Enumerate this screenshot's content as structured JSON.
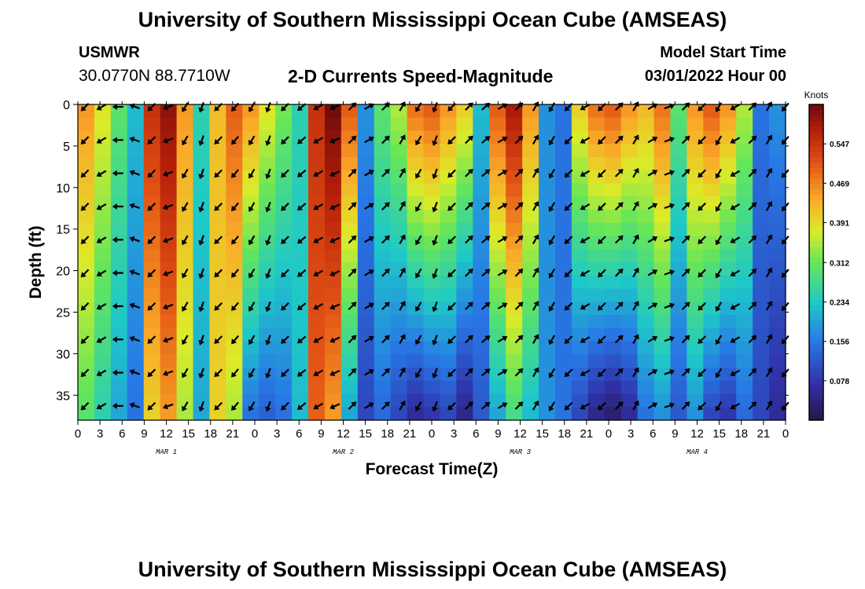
{
  "header": {
    "title": "University of Southern Mississippi Ocean Cube (AMSEAS)",
    "station": "USMWR",
    "coords": "30.0770N  88.7710W",
    "subtitle": "2-D Currents Speed-Magnitude",
    "start_label": "Model Start Time",
    "start_value": "03/01/2022 Hour 00"
  },
  "footer": {
    "title": "University of Southern Mississippi Ocean Cube (AMSEAS)"
  },
  "chart_data": {
    "type": "heatmap",
    "xlabel": "Forecast Time(Z)",
    "ylabel": "Depth (ft)",
    "x_range_hours": [
      0,
      96
    ],
    "y_range_ft": [
      0,
      38
    ],
    "x_tick_labels": [
      "0",
      "3",
      "6",
      "9",
      "12",
      "15",
      "18",
      "21",
      "0",
      "3",
      "6",
      "9",
      "12",
      "15",
      "18",
      "21",
      "0",
      "3",
      "6",
      "9",
      "12",
      "15",
      "18",
      "21",
      "0",
      "3",
      "6",
      "9",
      "12",
      "15",
      "18",
      "21",
      "0"
    ],
    "day_labels": [
      "MAR 1",
      "MAR 2",
      "MAR 3",
      "MAR 4"
    ],
    "y_ticks": [
      0,
      5,
      10,
      15,
      20,
      25,
      30,
      35
    ],
    "colorbar": {
      "unit": "Knots",
      "tick_values": [
        0.078,
        0.156,
        0.234,
        0.312,
        0.391,
        0.469,
        0.547
      ],
      "tick_labels": [
        "0.078",
        "0.156",
        "0.234",
        "0.312",
        "0.391",
        "0.469",
        "0.547"
      ],
      "range": [
        0.0,
        0.625
      ]
    },
    "speed_profile_surface_knots": [
      0.45,
      0.38,
      0.3,
      0.22,
      0.55,
      0.6,
      0.45,
      0.25,
      0.42,
      0.5,
      0.45,
      0.38,
      0.32,
      0.25,
      0.55,
      0.62,
      0.5,
      0.18,
      0.3,
      0.35,
      0.48,
      0.5,
      0.45,
      0.4,
      0.22,
      0.5,
      0.58,
      0.45,
      0.18,
      0.15,
      0.4,
      0.48,
      0.5,
      0.45,
      0.42,
      0.48,
      0.3,
      0.45,
      0.5,
      0.45,
      0.35,
      0.15,
      0.18
    ],
    "speed_profile_bottom_knots": [
      0.3,
      0.25,
      0.2,
      0.15,
      0.4,
      0.45,
      0.35,
      0.2,
      0.4,
      0.35,
      0.15,
      0.13,
      0.15,
      0.22,
      0.5,
      0.45,
      0.2,
      0.1,
      0.14,
      0.1,
      0.06,
      0.08,
      0.1,
      0.05,
      0.12,
      0.2,
      0.28,
      0.22,
      0.18,
      0.15,
      0.1,
      0.05,
      0.03,
      0.06,
      0.15,
      0.18,
      0.12,
      0.18,
      0.1,
      0.08,
      0.14,
      0.1,
      0.06
    ],
    "current_arrow_direction_deg_by_hour": [
      135,
      150,
      180,
      200,
      135,
      160,
      120,
      110,
      135,
      130,
      120,
      110,
      135,
      140,
      150,
      155,
      315,
      330,
      315,
      300,
      120,
      110,
      135,
      315,
      320,
      330,
      315,
      300,
      120,
      135,
      150,
      135,
      315,
      300,
      330,
      340,
      315,
      135,
      120,
      150,
      315,
      300,
      130
    ]
  }
}
